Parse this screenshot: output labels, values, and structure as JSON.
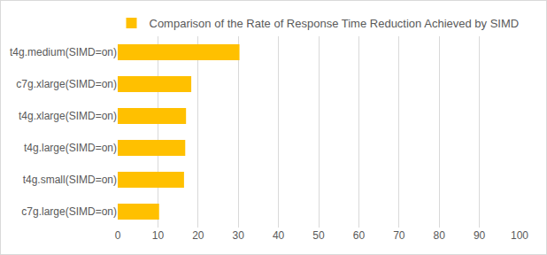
{
  "chart_data": {
    "type": "bar",
    "orientation": "horizontal",
    "categories": [
      "t4g.medium(SIMD=on)",
      "c7g.xlarge(SIMD=on)",
      "t4g.xlarge(SIMD=on)",
      "t4g.large(SIMD=on)",
      "t4g.small(SIMD=on)",
      "c7g.large(SIMD=on)"
    ],
    "series": [
      {
        "name": "Comparison of the Rate of Response Time Reduction Achieved by SIMD",
        "color": "#FFC000",
        "values": [
          30.3,
          18.3,
          17.0,
          16.8,
          16.5,
          10.3
        ]
      }
    ],
    "xlim": [
      0,
      100
    ],
    "xticks": [
      0,
      10,
      20,
      30,
      40,
      50,
      60,
      70,
      80,
      90,
      100
    ],
    "grid": true,
    "legend": "top"
  }
}
